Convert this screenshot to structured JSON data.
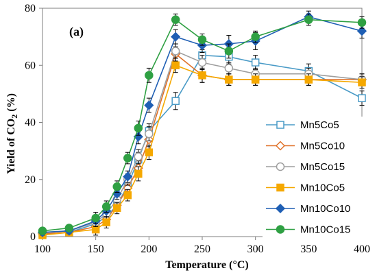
{
  "chart_data": {
    "type": "line",
    "panel_label": "(a)",
    "xlabel": "Temperature (°C)",
    "ylabel_main": "Yield of CO",
    "ylabel_sub": "2",
    "ylabel_unit": " (%)",
    "xlim": [
      100,
      400
    ],
    "ylim": [
      0,
      80
    ],
    "x_ticks": [
      100,
      150,
      200,
      250,
      300,
      350,
      400
    ],
    "y_ticks": [
      0,
      20,
      40,
      60,
      80
    ],
    "grid": false,
    "legend_position": "bottom-right",
    "x": [
      100,
      125,
      150,
      160,
      170,
      180,
      190,
      200,
      225,
      250,
      275,
      300,
      350,
      400
    ],
    "series": [
      {
        "name": "Mn5Co5",
        "color": "#4a9bc7",
        "marker": "square-open",
        "values": [
          1.0,
          1.5,
          4.5,
          7.0,
          11.0,
          18.0,
          27.0,
          37.0,
          47.5,
          63.5,
          63.0,
          61.0,
          58.0,
          48.5
        ],
        "error": [
          1.0,
          1.0,
          2.0,
          2.0,
          2.0,
          2.0,
          2.5,
          2.5,
          3.0,
          2.0,
          2.5,
          2.5,
          2.5,
          2.5
        ]
      },
      {
        "name": "Mn5Co10",
        "color": "#e0722a",
        "marker": "diamond-open",
        "values": [
          1.0,
          1.5,
          3.5,
          6.0,
          11.0,
          17.0,
          24.0,
          34.0,
          64.0,
          56.5,
          55.0,
          55.0,
          55.0,
          55.0
        ],
        "error": [
          1.0,
          1.0,
          2.0,
          2.0,
          2.0,
          2.0,
          2.5,
          2.5,
          2.5,
          2.5,
          2.0,
          2.0,
          2.0,
          2.0
        ]
      },
      {
        "name": "Mn5Co15",
        "color": "#9e9e9e",
        "marker": "circle-open",
        "values": [
          1.5,
          2.0,
          5.0,
          8.0,
          13.0,
          20.0,
          28.0,
          36.0,
          65.0,
          61.0,
          59.0,
          57.0,
          57.0,
          55.0
        ],
        "error": [
          1.0,
          1.0,
          2.0,
          2.0,
          2.0,
          2.0,
          2.5,
          2.5,
          2.5,
          2.5,
          2.0,
          2.0,
          2.0,
          2.0
        ]
      },
      {
        "name": "Mn10Co5",
        "color": "#f5a800",
        "marker": "square",
        "values": [
          0.5,
          1.5,
          2.5,
          5.0,
          10.0,
          14.5,
          22.0,
          29.5,
          60.0,
          56.5,
          55.0,
          55.0,
          55.0,
          54.0
        ],
        "error": [
          1.0,
          1.0,
          2.0,
          2.0,
          2.0,
          2.0,
          2.5,
          2.5,
          2.5,
          2.5,
          2.0,
          2.0,
          2.0,
          2.0
        ]
      },
      {
        "name": "Mn10Co10",
        "color": "#1f5fb4",
        "marker": "diamond",
        "values": [
          1.5,
          2.0,
          5.5,
          9.0,
          15.0,
          21.0,
          35.0,
          46.0,
          70.0,
          67.0,
          67.5,
          68.5,
          77.0,
          72.0
        ],
        "error": [
          1.0,
          1.0,
          2.0,
          2.0,
          2.0,
          2.0,
          2.5,
          2.5,
          2.5,
          2.5,
          3.0,
          3.0,
          2.0,
          2.5
        ]
      },
      {
        "name": "Mn10Co15",
        "color": "#2fa043",
        "marker": "circle",
        "values": [
          2.0,
          3.0,
          6.5,
          10.5,
          17.5,
          27.5,
          38.0,
          56.5,
          76.0,
          69.0,
          65.0,
          70.0,
          76.0,
          75.0
        ],
        "error": [
          1.0,
          1.0,
          2.0,
          2.0,
          2.0,
          2.0,
          2.5,
          2.5,
          2.0,
          2.0,
          2.5,
          2.0,
          2.0,
          2.0
        ]
      }
    ]
  }
}
